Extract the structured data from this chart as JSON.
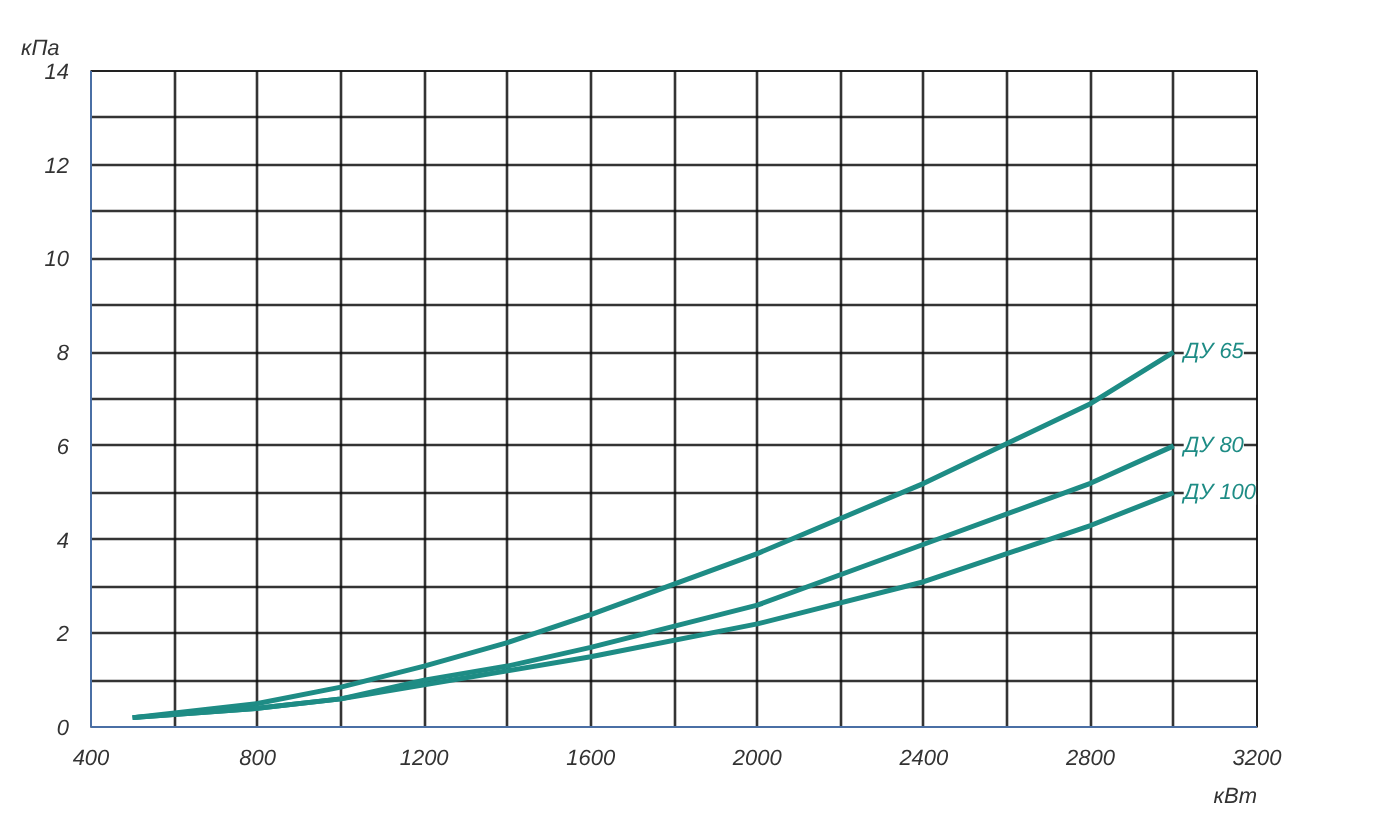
{
  "chart_data": {
    "type": "line",
    "xlabel": "кВт",
    "ylabel": "кПа",
    "x": [
      500,
      800,
      1000,
      1200,
      1400,
      1600,
      2000,
      2400,
      2800,
      3000
    ],
    "series": [
      {
        "name": "ДУ 65",
        "color": "#1e8c85",
        "values": [
          0.2,
          0.5,
          0.85,
          1.3,
          1.8,
          2.4,
          3.7,
          5.2,
          6.9,
          8.0
        ]
      },
      {
        "name": "ДУ 80",
        "color": "#1e8c85",
        "values": [
          0.2,
          0.4,
          0.6,
          1.0,
          1.3,
          1.7,
          2.6,
          3.9,
          5.2,
          6.0
        ]
      },
      {
        "name": "ДУ 100",
        "color": "#1e8c85",
        "values": [
          0.2,
          0.4,
          0.6,
          0.9,
          1.2,
          1.5,
          2.2,
          3.1,
          4.3,
          5.0
        ]
      }
    ],
    "xlim": [
      400,
      3200
    ],
    "xticks": [
      400,
      {
        "value": 600,
        "label": null
      },
      800,
      {
        "value": 1000,
        "label": null
      },
      1200,
      {
        "value": 1400,
        "label": null
      },
      1600,
      {
        "value": 1800,
        "label": null
      },
      2000,
      {
        "value": 2200,
        "label": null
      },
      2400,
      {
        "value": 2600,
        "label": null
      },
      2800,
      {
        "value": 3000,
        "label": null
      },
      3200
    ],
    "ylim": [
      0,
      14
    ],
    "yticks": [
      0,
      {
        "value": 1,
        "label": null
      },
      2,
      {
        "value": 3,
        "label": null
      },
      4,
      {
        "value": 5,
        "label": null
      },
      6,
      {
        "value": 7,
        "label": null
      },
      8,
      {
        "value": 9,
        "label": null
      },
      10,
      {
        "value": 11,
        "label": null
      },
      12,
      {
        "value": 13,
        "label": null
      },
      14
    ],
    "grid": true,
    "marker": "none",
    "line_style": "solid"
  }
}
